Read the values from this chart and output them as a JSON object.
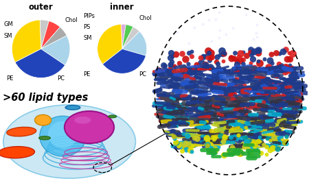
{
  "outer_sizes": [
    5,
    7,
    6,
    17,
    33,
    32
  ],
  "outer_colors": [
    "#c8c8c8",
    "#ff4444",
    "#aaaaaa",
    "#aad4ea",
    "#2244bb",
    "#ffd700"
  ],
  "inner_sizes": [
    3,
    5,
    5,
    17,
    35,
    35
  ],
  "inner_colors": [
    "#ddaadd",
    "#55cc55",
    "#cccccc",
    "#aad4ea",
    "#2244bb",
    "#ffd700"
  ],
  "outer_title": "outer",
  "inner_title": "inner",
  "text_60": ">60 lipid types",
  "bg_color": "#ffffff",
  "membrane_bg": "#1a2050",
  "top_band_color": "#1e3a8a",
  "red_bead_color": "#dd2222",
  "yellow_bead_color": "#ddcc22",
  "cyan_tail_color": "#00aacc",
  "dark_tail_color": "#333344",
  "green_tail_color": "#228833"
}
